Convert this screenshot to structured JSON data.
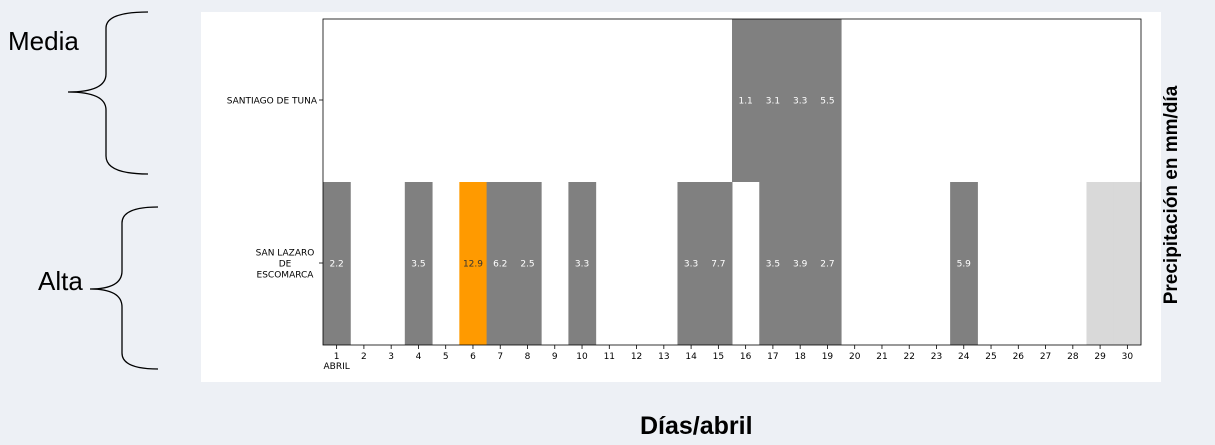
{
  "annotations": {
    "media": "Media",
    "alta": "Alta"
  },
  "chart_data": {
    "type": "heatmap",
    "xlabel": "Días/abril",
    "ylabel": "Precipitación en mm/día",
    "x_month_label": "ABRIL",
    "days": [
      1,
      2,
      3,
      4,
      5,
      6,
      7,
      8,
      9,
      10,
      11,
      12,
      13,
      14,
      15,
      16,
      17,
      18,
      19,
      20,
      21,
      22,
      23,
      24,
      25,
      26,
      27,
      28,
      29,
      30
    ],
    "rows": [
      {
        "name": "SANTIAGO DE TUNA",
        "cells": [
          {
            "day": 16,
            "value": 1.1,
            "label": "1.1"
          },
          {
            "day": 17,
            "value": 3.1,
            "label": "3.1"
          },
          {
            "day": 18,
            "value": 3.3,
            "label": "3.3"
          },
          {
            "day": 19,
            "value": 5.5,
            "label": "5.5"
          }
        ]
      },
      {
        "name": "SAN LAZARO DE ESCOMARCA",
        "name_lines": [
          "SAN LAZARO",
          "DE",
          "ESCOMARCA"
        ],
        "cells": [
          {
            "day": 1,
            "value": 2.2,
            "label": "2.2"
          },
          {
            "day": 4,
            "value": 3.5,
            "label": "3.5"
          },
          {
            "day": 6,
            "value": 12.9,
            "label": "12.9",
            "highlight": true
          },
          {
            "day": 7,
            "value": 6.2,
            "label": "6.2"
          },
          {
            "day": 8,
            "value": 2.5,
            "label": "2.5"
          },
          {
            "day": 10,
            "value": 3.3,
            "label": "3.3"
          },
          {
            "day": 14,
            "value": 3.3,
            "label": "3.3"
          },
          {
            "day": 15,
            "value": 7.7,
            "label": "7.7"
          },
          {
            "day": 17,
            "value": 3.5,
            "label": "3.5"
          },
          {
            "day": 18,
            "value": 3.9,
            "label": "3.9"
          },
          {
            "day": 19,
            "value": 2.7,
            "label": "2.7"
          },
          {
            "day": 24,
            "value": 5.9,
            "label": "5.9"
          },
          {
            "day": 29,
            "value": null,
            "label": "",
            "missing": true
          },
          {
            "day": 30,
            "value": null,
            "label": "",
            "missing": true
          }
        ]
      }
    ],
    "colors": {
      "rain": "#808080",
      "highlight": "#ff9a00",
      "missing": "#d9d9d9",
      "background": "#ffffff",
      "cell_text": "#ffffff"
    },
    "grid": false
  }
}
